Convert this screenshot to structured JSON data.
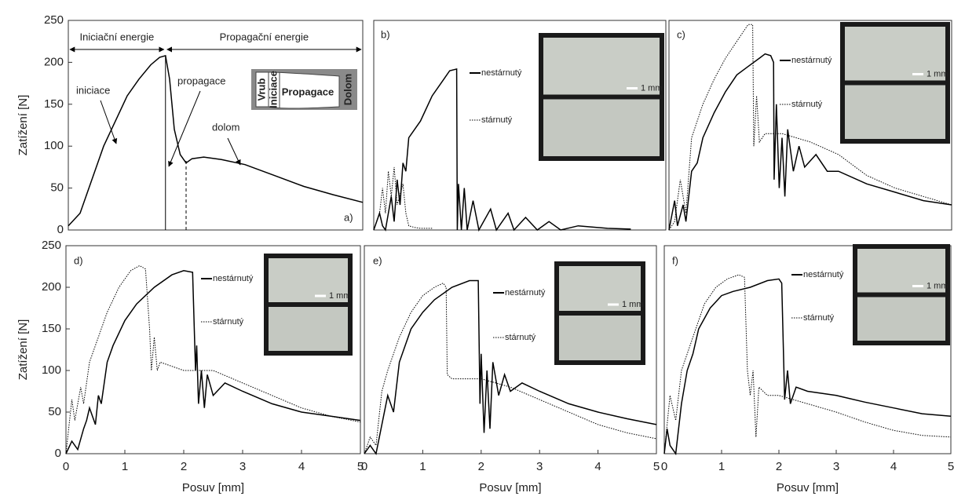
{
  "chart_data": [
    {
      "type": "line",
      "panel_label": "a)",
      "y_label": "Zatížení [N]",
      "xlim": [
        0,
        5
      ],
      "ylim": [
        0,
        250
      ],
      "yticks": [
        0,
        50,
        100,
        150,
        200,
        250
      ],
      "annotations": [
        "Iniciační energie",
        "Propagační energie",
        "iniciace",
        "propagace",
        "dolom",
        "Vrub",
        "Iniciace",
        "Propagace",
        "Dolom"
      ],
      "boundaries": [
        {
          "x": 1.65,
          "y": 208,
          "style": "solid"
        },
        {
          "x": 2.0,
          "y": 85,
          "style": "dashed"
        }
      ],
      "series": [
        {
          "color": "#000000",
          "style": "solid",
          "x": [
            0,
            0.2,
            0.4,
            0.6,
            0.8,
            1.0,
            1.2,
            1.4,
            1.55,
            1.65,
            1.72,
            1.8,
            1.9,
            2.0,
            2.1,
            2.3,
            2.6,
            3.0,
            3.5,
            4.0,
            4.5,
            5.0
          ],
          "values": [
            5,
            20,
            60,
            100,
            130,
            160,
            180,
            197,
            206,
            208,
            180,
            120,
            90,
            80,
            85,
            87,
            84,
            78,
            65,
            52,
            42,
            33
          ]
        }
      ]
    },
    {
      "type": "line",
      "panel_label": "b)",
      "photo_scale": "1 mm",
      "xlim": [
        0,
        5
      ],
      "ylim": [
        0,
        250
      ],
      "series": [
        {
          "name": "nestárnutý",
          "color": "#000000",
          "style": "solid",
          "x": [
            0,
            0.05,
            0.1,
            0.15,
            0.2,
            0.3,
            0.35,
            0.4,
            0.45,
            0.5,
            0.55,
            0.6,
            0.8,
            1.0,
            1.2,
            1.3,
            1.42,
            1.43,
            1.45,
            1.5,
            1.55,
            1.6,
            1.7,
            1.8,
            2.0,
            2.1,
            2.3,
            2.4,
            2.6,
            2.8,
            3.0,
            3.2,
            3.5,
            4.0,
            4.4
          ],
          "values": [
            0,
            10,
            20,
            5,
            0,
            40,
            10,
            60,
            30,
            80,
            70,
            110,
            130,
            160,
            180,
            190,
            192,
            0,
            55,
            0,
            50,
            0,
            35,
            0,
            25,
            0,
            20,
            0,
            15,
            0,
            10,
            0,
            5,
            2,
            1
          ]
        },
        {
          "name": "stárnutý",
          "color": "#000000",
          "style": "dotted",
          "x": [
            0,
            0.1,
            0.15,
            0.2,
            0.25,
            0.3,
            0.35,
            0.4,
            0.5,
            0.55,
            0.6,
            0.7,
            0.8,
            1.0
          ],
          "values": [
            0,
            20,
            50,
            20,
            70,
            40,
            75,
            30,
            55,
            20,
            5,
            3,
            2,
            2
          ]
        }
      ]
    },
    {
      "type": "line",
      "panel_label": "c)",
      "photo_scale": "1 mm",
      "xlim": [
        0,
        5
      ],
      "ylim": [
        0,
        250
      ],
      "series": [
        {
          "name": "nestárnutý",
          "color": "#000000",
          "style": "solid",
          "x": [
            0,
            0.1,
            0.15,
            0.25,
            0.3,
            0.4,
            0.5,
            0.6,
            0.8,
            1.0,
            1.2,
            1.4,
            1.6,
            1.7,
            1.8,
            1.85,
            1.86,
            1.9,
            1.95,
            2.0,
            2.05,
            2.1,
            2.2,
            2.3,
            2.4,
            2.6,
            2.8,
            3.0,
            3.5,
            4.0,
            4.5,
            5.0
          ],
          "values": [
            0,
            35,
            5,
            30,
            10,
            70,
            80,
            110,
            140,
            165,
            185,
            195,
            205,
            210,
            208,
            200,
            60,
            150,
            50,
            110,
            40,
            120,
            70,
            100,
            75,
            90,
            70,
            70,
            55,
            45,
            35,
            30
          ]
        },
        {
          "name": "stárnutý",
          "color": "#000000",
          "style": "dotted",
          "x": [
            0,
            0.1,
            0.2,
            0.3,
            0.4,
            0.6,
            0.8,
            1.0,
            1.2,
            1.4,
            1.48,
            1.5,
            1.55,
            1.6,
            1.7,
            2.0,
            2.5,
            3.0,
            3.5,
            4.0,
            4.5,
            5.0
          ],
          "values": [
            0,
            10,
            60,
            20,
            110,
            150,
            180,
            205,
            225,
            245,
            245,
            100,
            160,
            105,
            115,
            115,
            105,
            90,
            65,
            50,
            40,
            30
          ]
        }
      ]
    },
    {
      "type": "line",
      "panel_label": "d)",
      "photo_scale": "1 mm",
      "y_label": "Zatížení [N]",
      "x_label": "Posuv [mm]",
      "xlim": [
        0,
        5
      ],
      "ylim": [
        0,
        250
      ],
      "xticks": [
        0,
        1,
        2,
        3,
        4,
        5
      ],
      "yticks": [
        0,
        50,
        100,
        150,
        200,
        250
      ],
      "series": [
        {
          "name": "nestárnutý",
          "color": "#000000",
          "style": "solid",
          "x": [
            0,
            0.1,
            0.2,
            0.3,
            0.35,
            0.4,
            0.5,
            0.55,
            0.6,
            0.7,
            0.8,
            1.0,
            1.2,
            1.5,
            1.8,
            2.0,
            2.15,
            2.2,
            2.22,
            2.25,
            2.3,
            2.35,
            2.4,
            2.5,
            2.7,
            3.0,
            3.5,
            4.0,
            4.5,
            5.0
          ],
          "values": [
            0,
            15,
            5,
            30,
            40,
            55,
            35,
            70,
            60,
            110,
            130,
            160,
            180,
            200,
            215,
            220,
            218,
            100,
            130,
            60,
            100,
            55,
            95,
            70,
            85,
            75,
            60,
            50,
            45,
            40
          ]
        },
        {
          "name": "stárnutý",
          "color": "#000000",
          "style": "dotted",
          "x": [
            0,
            0.1,
            0.15,
            0.25,
            0.3,
            0.4,
            0.5,
            0.7,
            0.9,
            1.1,
            1.25,
            1.35,
            1.42,
            1.45,
            1.5,
            1.55,
            1.6,
            1.8,
            2.0,
            2.5,
            3.0,
            3.5,
            4.0,
            4.5,
            5.0
          ],
          "values": [
            0,
            65,
            40,
            80,
            60,
            110,
            130,
            170,
            200,
            220,
            226,
            222,
            150,
            100,
            140,
            100,
            110,
            105,
            100,
            100,
            85,
            70,
            55,
            45,
            38
          ]
        }
      ]
    },
    {
      "type": "line",
      "panel_label": "e)",
      "photo_scale": "1 mm",
      "x_label": "Posuv [mm]",
      "xlim": [
        0,
        5
      ],
      "ylim": [
        0,
        250
      ],
      "xticks": [
        0,
        1,
        2,
        3,
        4,
        5
      ],
      "series": [
        {
          "name": "nestárnutý",
          "color": "#000000",
          "style": "solid",
          "x": [
            0,
            0.1,
            0.2,
            0.4,
            0.5,
            0.6,
            0.8,
            1.0,
            1.2,
            1.5,
            1.8,
            1.95,
            1.98,
            2.0,
            2.05,
            2.1,
            2.15,
            2.2,
            2.3,
            2.4,
            2.5,
            2.7,
            3.0,
            3.5,
            4.0,
            4.5,
            5.0
          ],
          "values": [
            0,
            10,
            0,
            70,
            50,
            110,
            150,
            170,
            185,
            200,
            208,
            208,
            60,
            120,
            25,
            100,
            30,
            110,
            70,
            95,
            75,
            85,
            75,
            60,
            50,
            42,
            35
          ]
        },
        {
          "name": "stárnutý",
          "color": "#000000",
          "style": "dotted",
          "x": [
            0,
            0.1,
            0.2,
            0.3,
            0.4,
            0.6,
            0.8,
            1.0,
            1.2,
            1.35,
            1.4,
            1.42,
            1.5,
            1.7,
            2.0,
            2.5,
            3.0,
            3.5,
            4.0,
            4.5,
            5.0
          ],
          "values": [
            0,
            20,
            10,
            75,
            100,
            140,
            170,
            190,
            200,
            205,
            200,
            95,
            90,
            90,
            90,
            80,
            65,
            50,
            35,
            25,
            18
          ]
        }
      ]
    },
    {
      "type": "line",
      "panel_label": "f)",
      "photo_scale": "1 mm",
      "x_label": "Posuv [mm]",
      "xlim": [
        0,
        5
      ],
      "ylim": [
        0,
        250
      ],
      "xticks": [
        0,
        1,
        2,
        3,
        4,
        5
      ],
      "series": [
        {
          "name": "nestárnutý",
          "color": "#000000",
          "style": "solid",
          "x": [
            0,
            0.05,
            0.1,
            0.2,
            0.3,
            0.4,
            0.5,
            0.6,
            0.8,
            1.0,
            1.2,
            1.5,
            1.8,
            2.0,
            2.05,
            2.1,
            2.15,
            2.2,
            2.3,
            2.5,
            3.0,
            3.5,
            4.0,
            4.5,
            5.0
          ],
          "values": [
            0,
            30,
            10,
            0,
            60,
            100,
            120,
            150,
            175,
            190,
            195,
            200,
            208,
            210,
            205,
            65,
            100,
            60,
            80,
            75,
            70,
            62,
            55,
            48,
            45
          ]
        },
        {
          "name": "stárnutý",
          "color": "#000000",
          "style": "dotted",
          "x": [
            0,
            0.1,
            0.2,
            0.3,
            0.5,
            0.7,
            0.9,
            1.1,
            1.3,
            1.4,
            1.45,
            1.5,
            1.55,
            1.6,
            1.65,
            1.8,
            2.0,
            2.5,
            3.0,
            3.5,
            4.0,
            4.5,
            5.0
          ],
          "values": [
            0,
            70,
            40,
            100,
            140,
            180,
            200,
            210,
            215,
            212,
            100,
            70,
            100,
            20,
            80,
            70,
            70,
            60,
            50,
            38,
            28,
            22,
            20
          ]
        }
      ]
    }
  ]
}
